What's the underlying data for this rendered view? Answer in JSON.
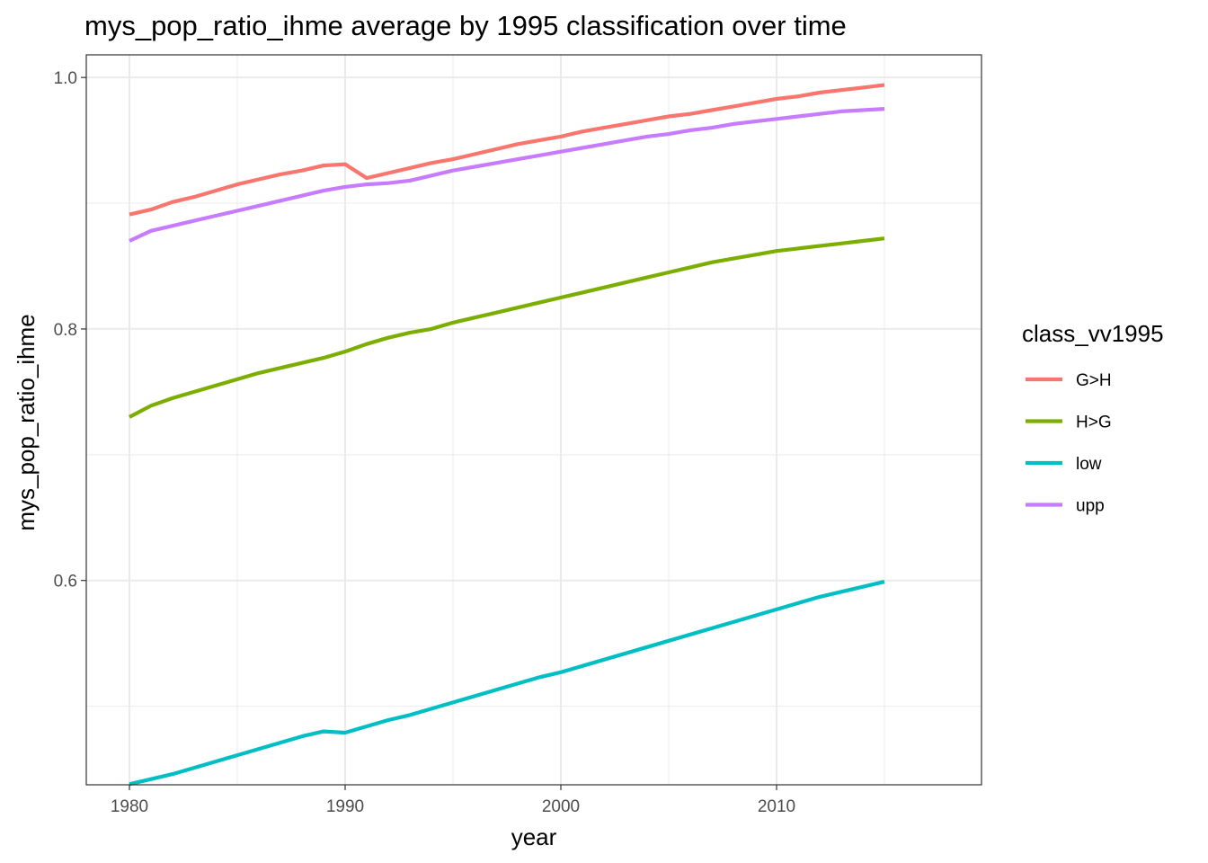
{
  "chart_data": {
    "type": "line",
    "title": "mys_pop_ratio_ihme average by 1995 classification over time",
    "xlabel": "year",
    "ylabel": "mys_pop_ratio_ihme",
    "xlim": [
      1978,
      2019.5
    ],
    "ylim": [
      0.4375,
      1.018
    ],
    "x_ticks": [
      1980,
      1990,
      2000,
      2010
    ],
    "x_tick_labels": [
      "1980",
      "1990",
      "2000",
      "2010"
    ],
    "y_ticks": [
      0.6,
      0.8,
      1.0
    ],
    "y_tick_labels": [
      "0.6",
      "0.8",
      "1.0"
    ],
    "x_minor_ticks": [
      1985,
      1995,
      2005,
      2015
    ],
    "y_minor_ticks": [
      0.5,
      0.7,
      0.9
    ],
    "grid": true,
    "legend": {
      "title": "class_vv1995",
      "position": "right"
    },
    "x": [
      1980,
      1981,
      1982,
      1983,
      1984,
      1985,
      1986,
      1987,
      1988,
      1989,
      1990,
      1991,
      1992,
      1993,
      1994,
      1995,
      1996,
      1997,
      1998,
      1999,
      2000,
      2001,
      2002,
      2003,
      2004,
      2005,
      2006,
      2007,
      2008,
      2009,
      2010,
      2011,
      2012,
      2013,
      2014,
      2015
    ],
    "series": [
      {
        "name": "G>H",
        "color": "#F8766D",
        "values": [
          0.891,
          0.895,
          0.901,
          0.905,
          0.91,
          0.915,
          0.919,
          0.923,
          0.926,
          0.93,
          0.931,
          0.92,
          0.924,
          0.928,
          0.932,
          0.935,
          0.939,
          0.943,
          0.947,
          0.95,
          0.953,
          0.957,
          0.96,
          0.963,
          0.966,
          0.969,
          0.971,
          0.974,
          0.977,
          0.98,
          0.983,
          0.985,
          0.988,
          0.99,
          0.992,
          0.994
        ]
      },
      {
        "name": "H>G",
        "color": "#7CAE00",
        "values": [
          0.73,
          0.739,
          0.745,
          0.75,
          0.755,
          0.76,
          0.765,
          0.769,
          0.773,
          0.777,
          0.782,
          0.788,
          0.793,
          0.797,
          0.8,
          0.805,
          0.809,
          0.813,
          0.817,
          0.821,
          0.825,
          0.829,
          0.833,
          0.837,
          0.841,
          0.845,
          0.849,
          0.853,
          0.856,
          0.859,
          0.862,
          0.864,
          0.866,
          0.868,
          0.87,
          0.872
        ]
      },
      {
        "name": "low",
        "color": "#00BFC4",
        "values": [
          0.438,
          0.442,
          0.446,
          0.451,
          0.456,
          0.461,
          0.466,
          0.471,
          0.476,
          0.48,
          0.479,
          0.484,
          0.489,
          0.493,
          0.498,
          0.503,
          0.508,
          0.513,
          0.518,
          0.523,
          0.527,
          0.532,
          0.537,
          0.542,
          0.547,
          0.552,
          0.557,
          0.562,
          0.567,
          0.572,
          0.577,
          0.582,
          0.587,
          0.591,
          0.595,
          0.599
        ]
      },
      {
        "name": "upp",
        "color": "#C77CFF",
        "values": [
          0.87,
          0.878,
          0.882,
          0.886,
          0.89,
          0.894,
          0.898,
          0.902,
          0.906,
          0.91,
          0.913,
          0.915,
          0.916,
          0.918,
          0.922,
          0.926,
          0.929,
          0.932,
          0.935,
          0.938,
          0.941,
          0.944,
          0.947,
          0.95,
          0.953,
          0.955,
          0.958,
          0.96,
          0.963,
          0.965,
          0.967,
          0.969,
          0.971,
          0.973,
          0.974,
          0.975
        ]
      }
    ]
  }
}
